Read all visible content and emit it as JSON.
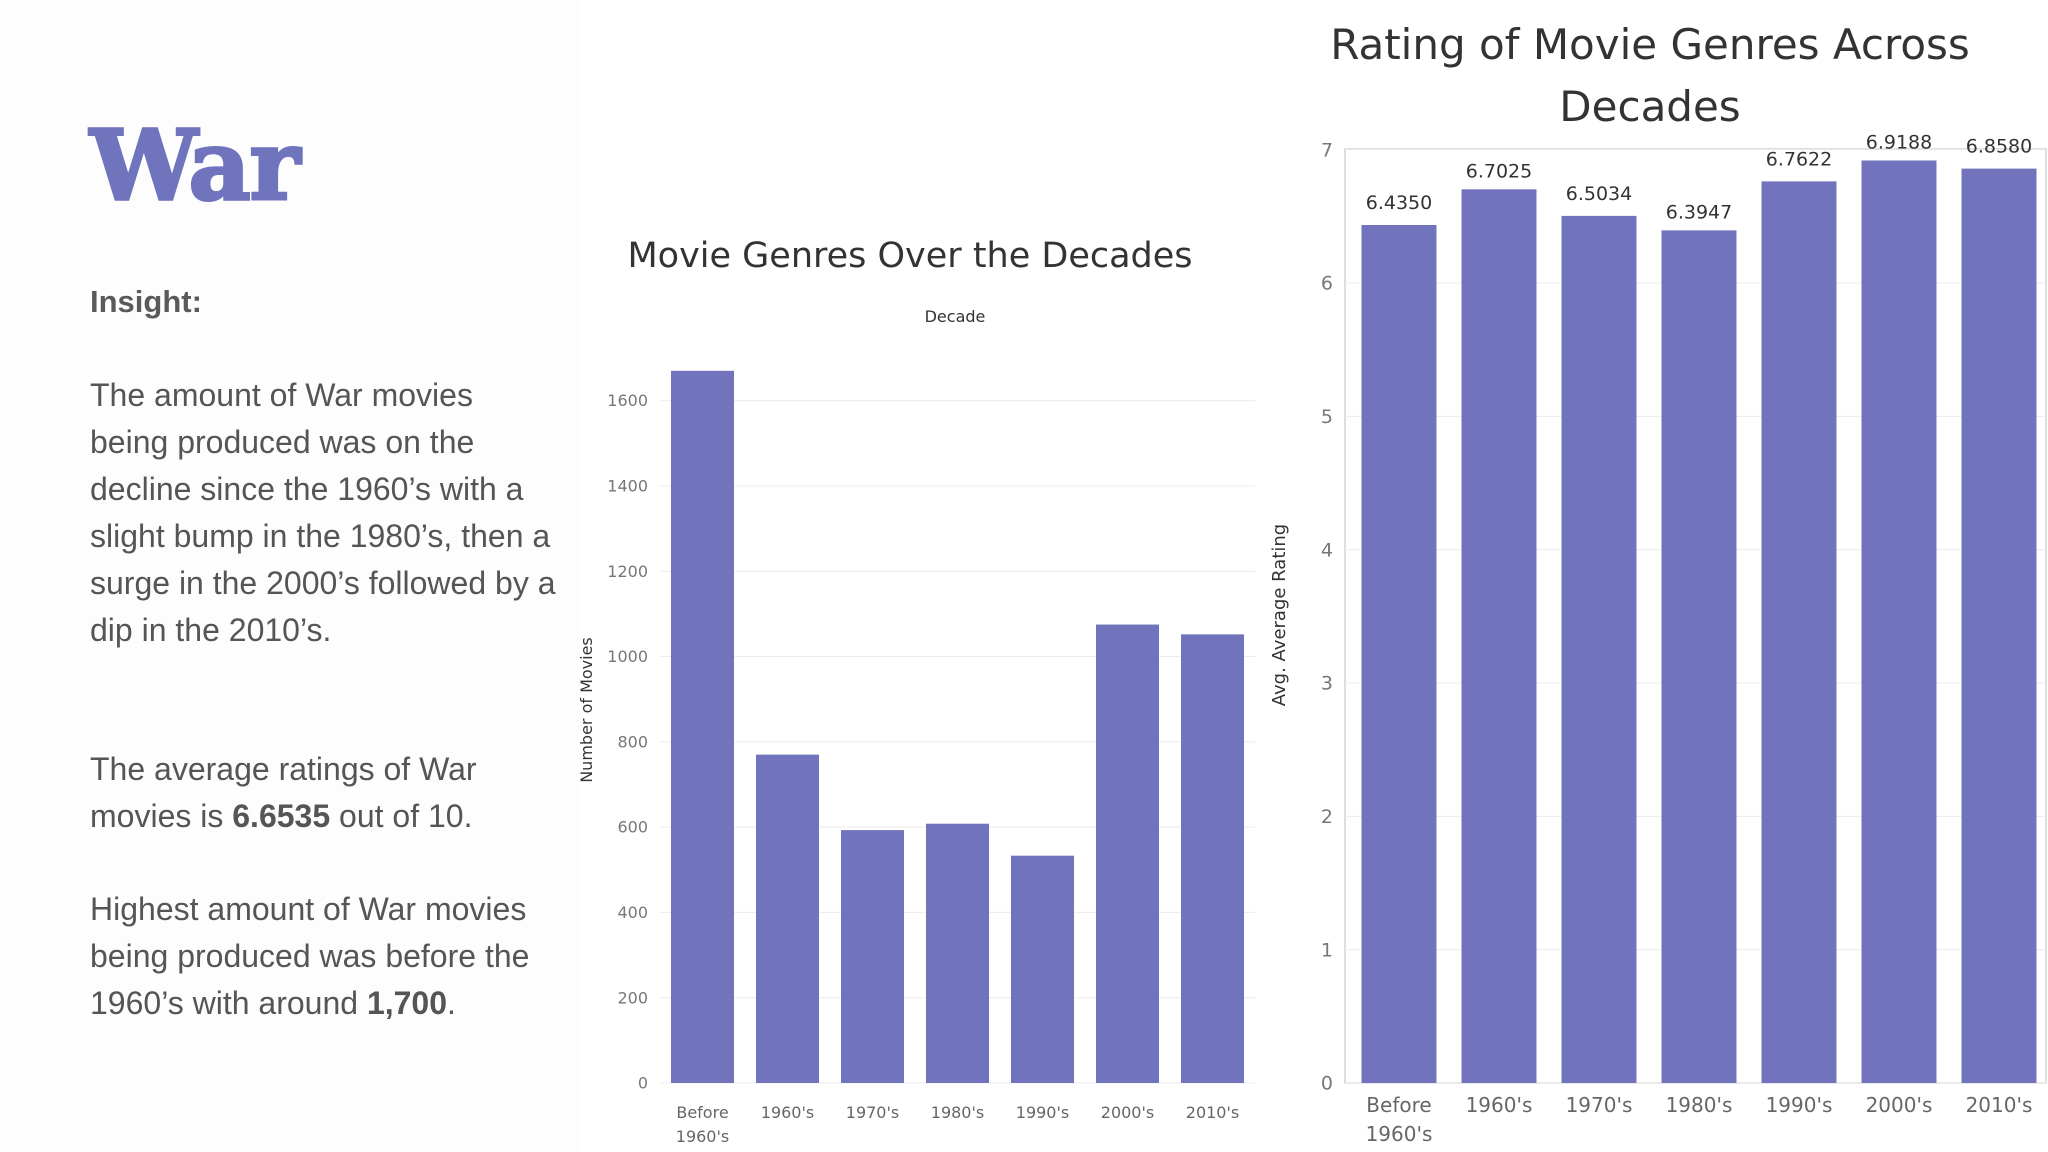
{
  "page": {
    "title": "War",
    "insight_label": "Insight:",
    "para1": "The amount of War movies being produced was on the decline since the 1960’s with a slight bump in the 1980’s, then a surge in the 2000’s followed by a dip in the 2010’s.",
    "para2_prefix": "The average ratings of War movies is ",
    "para2_bold": "6.6535",
    "para2_suffix": " out of 10.",
    "para3_prefix": "Highest amount of War movies being produced was before the 1960’s with around ",
    "para3_bold": "1,700",
    "para3_suffix": "."
  },
  "colors": {
    "accent": "#6f74bd",
    "bar": "#7174bd",
    "text": "#555555"
  },
  "chart_data": [
    {
      "type": "bar",
      "title": "Movie Genres Over the Decades",
      "column_header": "Decade",
      "ylabel": "Number of Movies",
      "xlabel": "",
      "categories": [
        "Before 1960's",
        "1960's",
        "1970's",
        "1980's",
        "1990's",
        "2000's",
        "2010's"
      ],
      "values": [
        1670,
        770,
        593,
        608,
        533,
        1075,
        1052
      ],
      "ylim": [
        0,
        1700
      ],
      "yticks": [
        0,
        200,
        400,
        600,
        800,
        1000,
        1200,
        1400,
        1600
      ],
      "grid": true
    },
    {
      "type": "bar",
      "title": "Rating of Movie Genres Across Decades",
      "ylabel": "Avg. Average Rating",
      "xlabel": "",
      "categories": [
        "Before 1960's",
        "1960's",
        "1970's",
        "1980's",
        "1990's",
        "2000's",
        "2010's"
      ],
      "values": [
        6.435,
        6.7025,
        6.5034,
        6.3947,
        6.7622,
        6.9188,
        6.858
      ],
      "value_labels": [
        "6.4350",
        "6.7025",
        "6.5034",
        "6.3947",
        "6.7622",
        "6.9188",
        "6.8580"
      ],
      "ylim": [
        0,
        7.5
      ],
      "yticks": [
        0,
        1,
        2,
        3,
        4,
        5,
        6,
        7
      ],
      "grid": true
    }
  ]
}
